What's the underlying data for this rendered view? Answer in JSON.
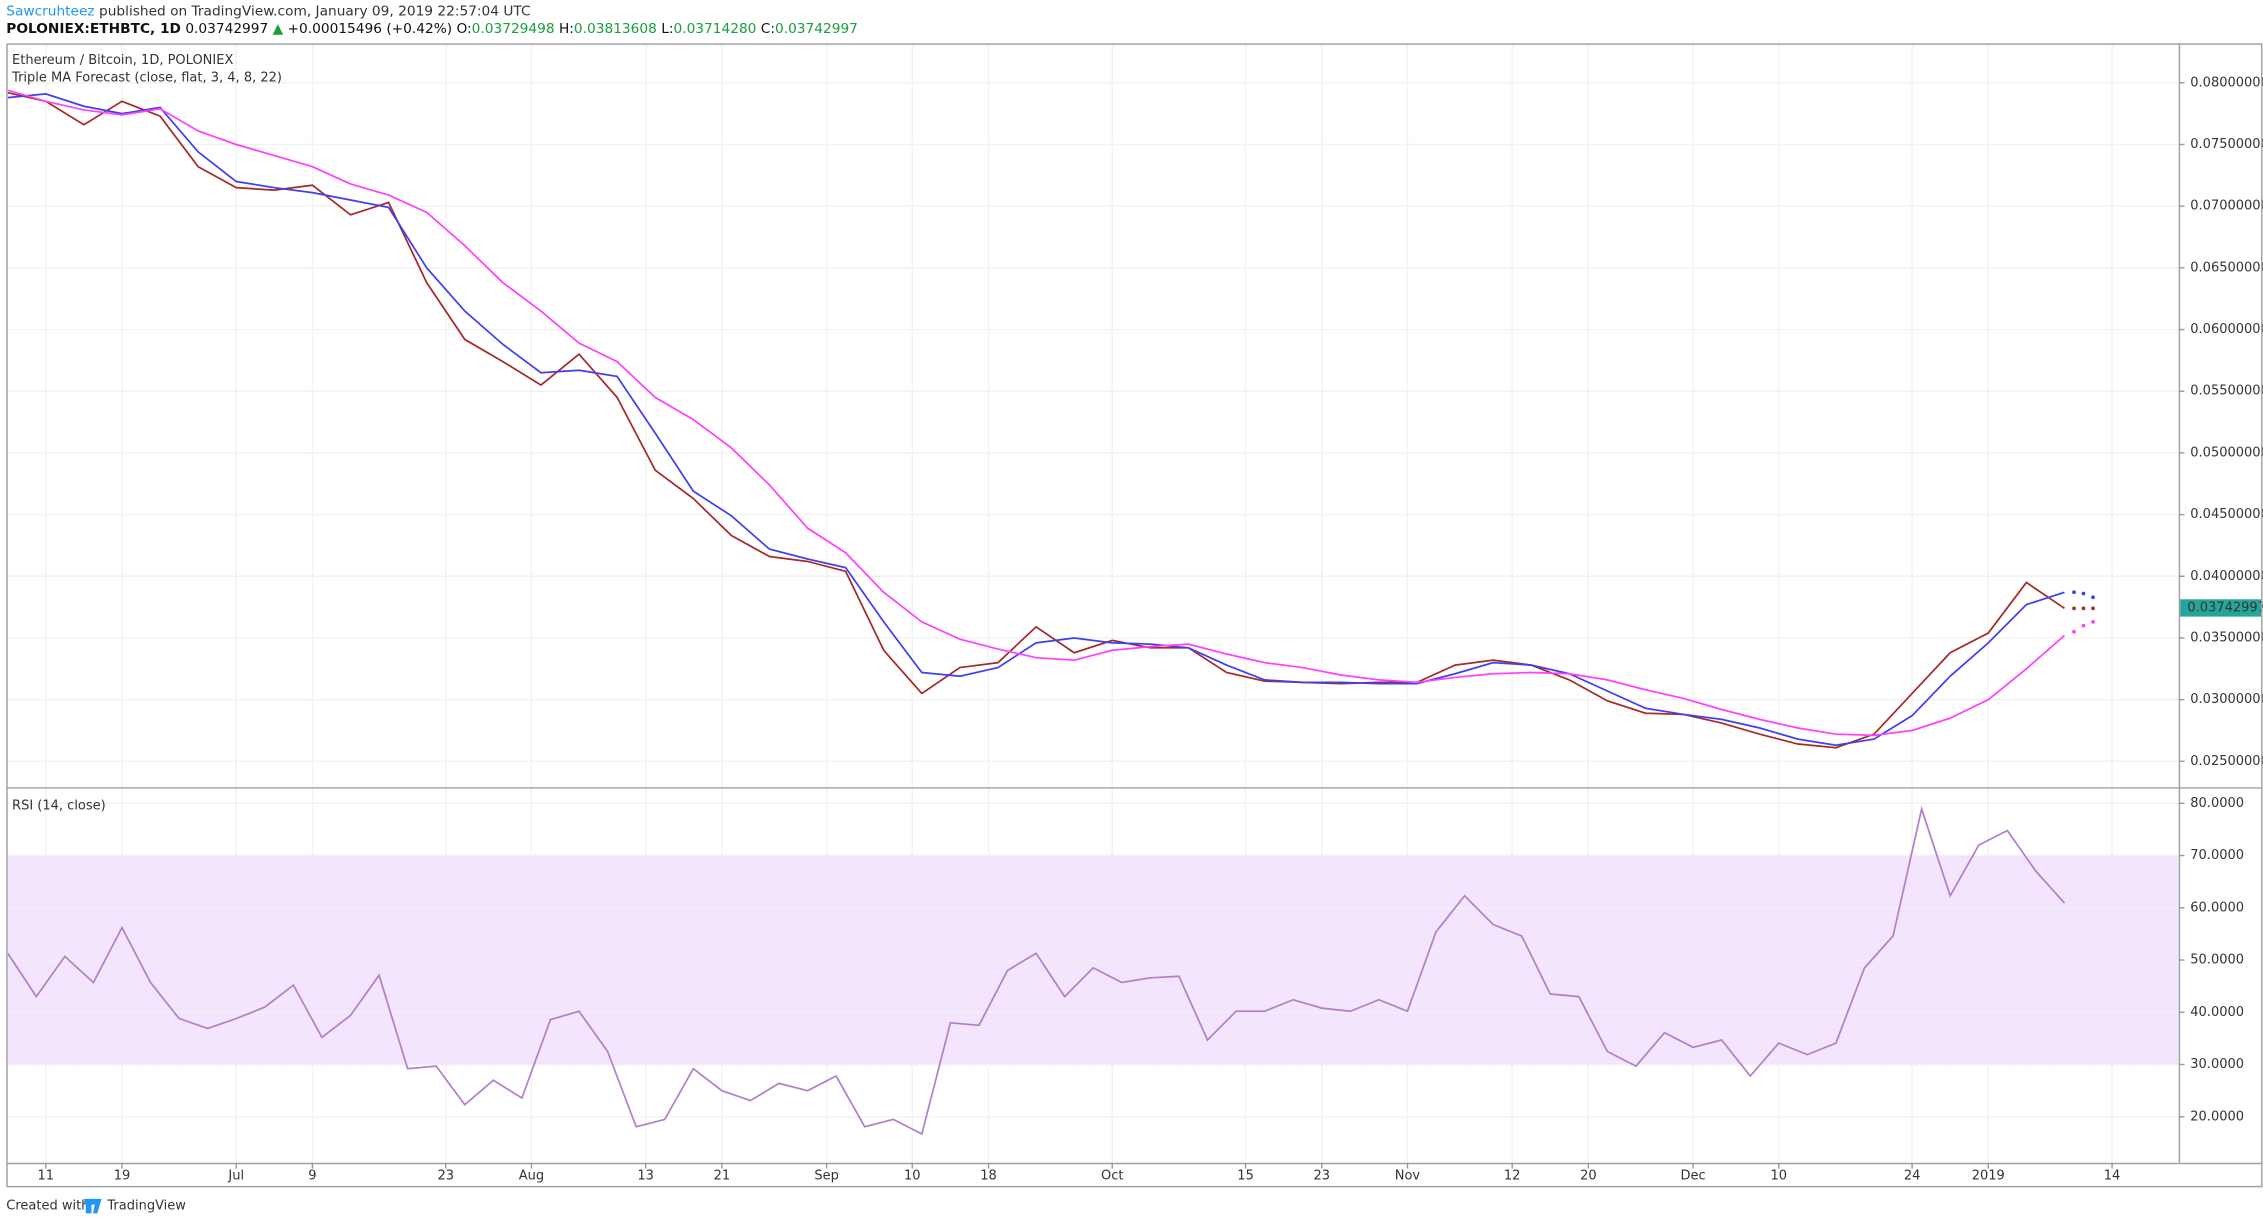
{
  "header": {
    "author": "Sawcruhteez",
    "published": "published on TradingView.com, January 09, 2019 22:57:04 UTC",
    "symbol": "POLONIEX:ETHBTC, 1D",
    "last": "0.03742997",
    "arrow": "▲",
    "change": "+0.00015496 (+0.42%)",
    "open_label": "O:",
    "open": "0.03729498",
    "high_label": "H:",
    "high": "0.03813608",
    "low_label": "L:",
    "low": "0.03714280",
    "close_label": "C:",
    "close": "0.03742997"
  },
  "footer": {
    "created": "Created with",
    "brand": "TradingView"
  },
  "chart_data": [
    {
      "type": "line",
      "title": "Ethereum / Bitcoin, 1D, POLONIEX",
      "subtitle": "Triple MA Forecast (close, flat, 3, 4, 8, 22)",
      "x": [
        6,
        10,
        14,
        18,
        22,
        26,
        30,
        34,
        38,
        42,
        46,
        50,
        54,
        58,
        62,
        66,
        70,
        74,
        78,
        82,
        86,
        90,
        94,
        98,
        102,
        106,
        110,
        114,
        118,
        122,
        126,
        130,
        134,
        138,
        142,
        146,
        150,
        154,
        158,
        162,
        166,
        170,
        174,
        178,
        182,
        186,
        190,
        194,
        198,
        202,
        206,
        210,
        214,
        218,
        222
      ],
      "series": [
        {
          "color": "#a52a2a",
          "values": [
            0.0792,
            0.0785,
            0.0766,
            0.0785,
            0.0773,
            0.0732,
            0.0715,
            0.0713,
            0.0717,
            0.0693,
            0.0703,
            0.0638,
            0.0592,
            0.0574,
            0.0555,
            0.058,
            0.0545,
            0.0486,
            0.0463,
            0.0433,
            0.0416,
            0.0412,
            0.0404,
            0.034,
            0.0305,
            0.0326,
            0.033,
            0.0359,
            0.0338,
            0.0348,
            0.0342,
            0.0342,
            0.0322,
            0.0315,
            0.0314,
            0.0313,
            0.0314,
            0.0314,
            0.0328,
            0.0332,
            0.0328,
            0.0316,
            0.0299,
            0.0289,
            0.0288,
            0.0281,
            0.0272,
            0.0264,
            0.0261,
            0.0272,
            0.0305,
            0.0338,
            0.0354,
            0.0395,
            0.0374
          ],
          "forecast": [
            0.0374,
            0.0374,
            0.0374
          ]
        },
        {
          "color": "#3f3ff0",
          "values": [
            0.0788,
            0.0791,
            0.0781,
            0.0775,
            0.078,
            0.0744,
            0.072,
            0.0715,
            0.0711,
            0.0705,
            0.0699,
            0.065,
            0.0615,
            0.0588,
            0.0565,
            0.0567,
            0.0562,
            0.0516,
            0.0469,
            0.0449,
            0.0422,
            0.0414,
            0.0407,
            0.0363,
            0.0322,
            0.0319,
            0.0326,
            0.0346,
            0.035,
            0.0346,
            0.0345,
            0.0342,
            0.0328,
            0.0316,
            0.0314,
            0.0314,
            0.0313,
            0.0313,
            0.0321,
            0.033,
            0.0328,
            0.0321,
            0.0307,
            0.0293,
            0.0288,
            0.0284,
            0.0277,
            0.0268,
            0.0263,
            0.0268,
            0.0287,
            0.0319,
            0.0346,
            0.0377,
            0.0387
          ],
          "forecast": [
            0.0387,
            0.0386,
            0.0383
          ]
        },
        {
          "color": "#ff40ff",
          "values": [
            0.0794,
            0.0785,
            0.0778,
            0.0774,
            0.0779,
            0.0761,
            0.075,
            0.0741,
            0.0732,
            0.0718,
            0.0709,
            0.0695,
            0.0668,
            0.0638,
            0.0615,
            0.0589,
            0.0574,
            0.0545,
            0.0527,
            0.0504,
            0.0474,
            0.0439,
            0.0419,
            0.0387,
            0.0363,
            0.0349,
            0.0341,
            0.0334,
            0.0332,
            0.034,
            0.0343,
            0.0345,
            0.0337,
            0.033,
            0.0326,
            0.032,
            0.0316,
            0.0314,
            0.0318,
            0.0321,
            0.0322,
            0.0321,
            0.0316,
            0.0308,
            0.0301,
            0.0292,
            0.0284,
            0.0277,
            0.0272,
            0.0271,
            0.0275,
            0.0285,
            0.03,
            0.0325,
            0.0352
          ],
          "forecast": [
            0.0355,
            0.036,
            0.0363
          ]
        }
      ],
      "forecast_x": [
        223,
        224,
        225
      ],
      "last_price": {
        "value": 0.03742997,
        "label": "0.03742997"
      },
      "xlim": [
        6,
        234
      ],
      "ylim": [
        0.0229,
        0.0832
      ],
      "yticks": [
        {
          "value": 0.025,
          "label": "0.02500000"
        },
        {
          "value": 0.03,
          "label": "0.03000000"
        },
        {
          "value": 0.035,
          "label": "0.03500000"
        },
        {
          "value": 0.04,
          "label": "0.04000000"
        },
        {
          "value": 0.045,
          "label": "0.04500000"
        },
        {
          "value": 0.05,
          "label": "0.05000000"
        },
        {
          "value": 0.055,
          "label": "0.05500000"
        },
        {
          "value": 0.06,
          "label": "0.06000000"
        },
        {
          "value": 0.065,
          "label": "0.06500000"
        },
        {
          "value": 0.07,
          "label": "0.07000000"
        },
        {
          "value": 0.075,
          "label": "0.07500000"
        },
        {
          "value": 0.08,
          "label": "0.08000000"
        }
      ],
      "grid": true
    },
    {
      "type": "line",
      "title": "RSI (14, close)",
      "x": [
        6,
        9,
        12,
        15,
        18,
        21,
        24,
        27,
        30,
        33,
        36,
        39,
        42,
        45,
        48,
        51,
        54,
        57,
        60,
        63,
        66,
        69,
        72,
        75,
        78,
        81,
        84,
        87,
        90,
        93,
        96,
        99,
        102,
        105,
        108,
        111,
        114,
        117,
        120,
        123,
        126,
        129,
        132,
        135,
        138,
        141,
        144,
        147,
        150,
        153,
        156,
        159,
        162,
        165,
        168,
        171,
        174,
        177,
        180,
        183,
        186,
        189,
        192,
        195,
        198,
        201,
        204,
        207,
        210,
        213,
        216,
        219,
        222
      ],
      "values": [
        51.3,
        43,
        50.7,
        45.7,
        56.2,
        45.7,
        38.8,
        36.9,
        38.8,
        41,
        45.2,
        35.2,
        39.4,
        47.1,
        29.2,
        29.7,
        22.3,
        27,
        23.6,
        38.6,
        40.2,
        32.5,
        18.1,
        19.5,
        29.2,
        25,
        23.1,
        26.4,
        25,
        27.8,
        18.1,
        19.5,
        16.7,
        38,
        37.5,
        48,
        51.3,
        43,
        48.5,
        45.7,
        46.6,
        46.9,
        34.7,
        40.2,
        40.2,
        42.4,
        40.8,
        40.2,
        42.4,
        40.2,
        55.4,
        62.3,
        56.8,
        54.6,
        43.5,
        43,
        32.5,
        29.7,
        36.1,
        33.3,
        34.7,
        27.8,
        34.1,
        31.9,
        34.1,
        48.5,
        54.6,
        78.9,
        62.3,
        72,
        74.8,
        67,
        60.9
      ],
      "color": "#b27fc9",
      "band": [
        30,
        70
      ],
      "xlim": [
        6,
        234
      ],
      "ylim": [
        11.2,
        82.8
      ],
      "yticks": [
        {
          "value": 20,
          "label": "20.0000"
        },
        {
          "value": 30,
          "label": "30.0000"
        },
        {
          "value": 40,
          "label": "40.0000"
        },
        {
          "value": 50,
          "label": "50.0000"
        },
        {
          "value": 60,
          "label": "60.0000"
        },
        {
          "value": 70,
          "label": "70.0000"
        },
        {
          "value": 80,
          "label": "80.0000"
        }
      ],
      "xticks": [
        {
          "value": 10,
          "label": "11"
        },
        {
          "value": 18,
          "label": "19"
        },
        {
          "value": 30,
          "label": "Jul"
        },
        {
          "value": 38,
          "label": "9"
        },
        {
          "value": 52,
          "label": "23"
        },
        {
          "value": 61,
          "label": "Aug"
        },
        {
          "value": 73,
          "label": "13"
        },
        {
          "value": 81,
          "label": "21"
        },
        {
          "value": 92,
          "label": "Sep"
        },
        {
          "value": 101,
          "label": "10"
        },
        {
          "value": 109,
          "label": "18"
        },
        {
          "value": 122,
          "label": "Oct"
        },
        {
          "value": 136,
          "label": "15"
        },
        {
          "value": 144,
          "label": "23"
        },
        {
          "value": 153,
          "label": "Nov"
        },
        {
          "value": 164,
          "label": "12"
        },
        {
          "value": 172,
          "label": "20"
        },
        {
          "value": 183,
          "label": "Dec"
        },
        {
          "value": 192,
          "label": "10"
        },
        {
          "value": 206,
          "label": "24"
        },
        {
          "value": 214,
          "label": "2019"
        },
        {
          "value": 227,
          "label": "14"
        }
      ],
      "grid": true
    }
  ]
}
